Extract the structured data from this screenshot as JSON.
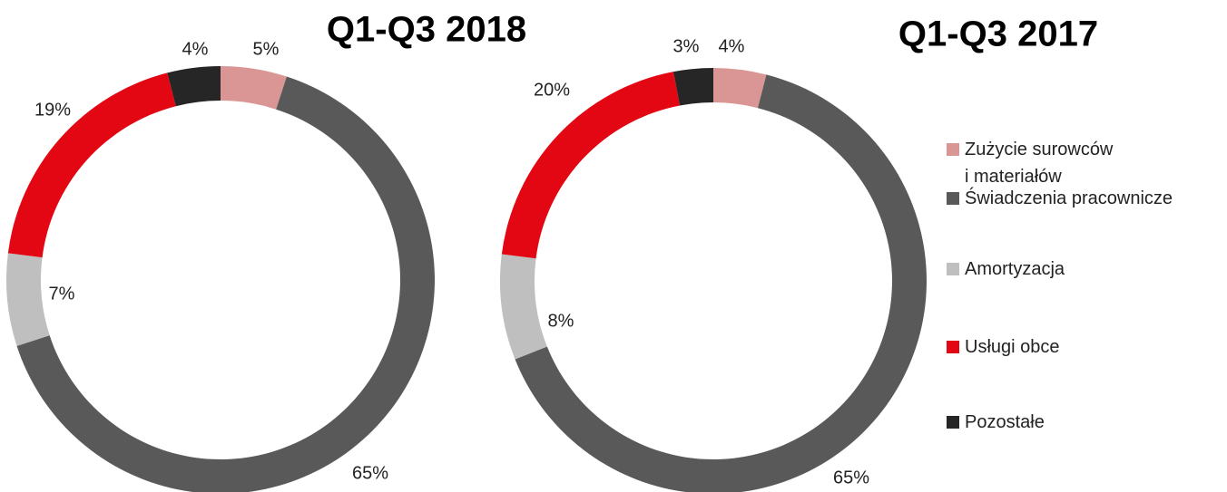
{
  "chart_data": [
    {
      "type": "donut",
      "title": "Q1-Q3 2018",
      "categories": [
        "Zużycie surowców i materiałów",
        "Świadczenia pracownicze",
        "Amortyzacja",
        "Usługi obce",
        "Pozostałe"
      ],
      "values": [
        5,
        65,
        7,
        19,
        4
      ],
      "value_labels": [
        "5%",
        "65%",
        "7%",
        "19%",
        "4%"
      ],
      "colors": [
        "#d99694",
        "#595959",
        "#bfbfbf",
        "#e30613",
        "#262626"
      ]
    },
    {
      "type": "donut",
      "title": "Q1-Q3 2017",
      "categories": [
        "Zużycie surowców i materiałów",
        "Świadczenia pracownicze",
        "Amortyzacja",
        "Usługi obce",
        "Pozostałe"
      ],
      "values": [
        4,
        65,
        8,
        20,
        3
      ],
      "value_labels": [
        "4%",
        "65%",
        "8%",
        "20%",
        "3%"
      ],
      "colors": [
        "#d99694",
        "#595959",
        "#bfbfbf",
        "#e30613",
        "#262626"
      ]
    }
  ]
}
